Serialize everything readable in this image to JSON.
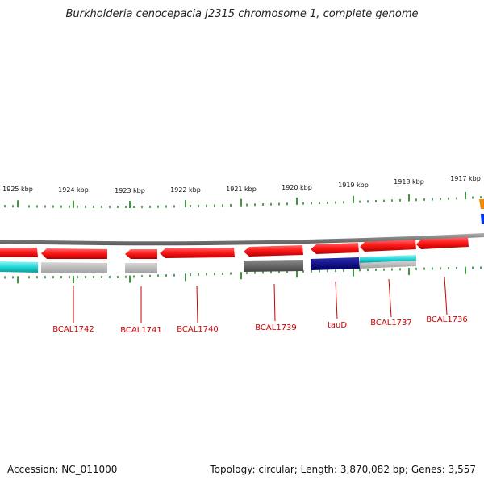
{
  "title": "Burkholderia cenocepacia J2315 chromosome 1, complete genome",
  "footer": {
    "accession": "Accession: NC_011000",
    "summary": "Topology: circular; Length: 3,870,082 bp; Genes: 3,557"
  },
  "scale_labels": [
    "1925 kbp",
    "1924 kbp",
    "1923 kbp",
    "1922 kbp",
    "1921 kbp",
    "1920 kbp",
    "1919 kbp",
    "1918 kbp",
    "1917 kbp"
  ],
  "gene_labels": [
    "BCAL1742",
    "BCAL1741",
    "BCAL1740",
    "BCAL1739",
    "tauD",
    "BCAL1737",
    "BCAL1736"
  ],
  "colors": {
    "gene_red": "#ee1111",
    "tick_green": "#2a8a2a",
    "backbone": "#888888",
    "cyan": "#22cccc",
    "gray": "#bbbbbb",
    "dark_gray": "#666666",
    "navy": "#000080",
    "orange": "#ee8800",
    "blue": "#0033ee"
  }
}
